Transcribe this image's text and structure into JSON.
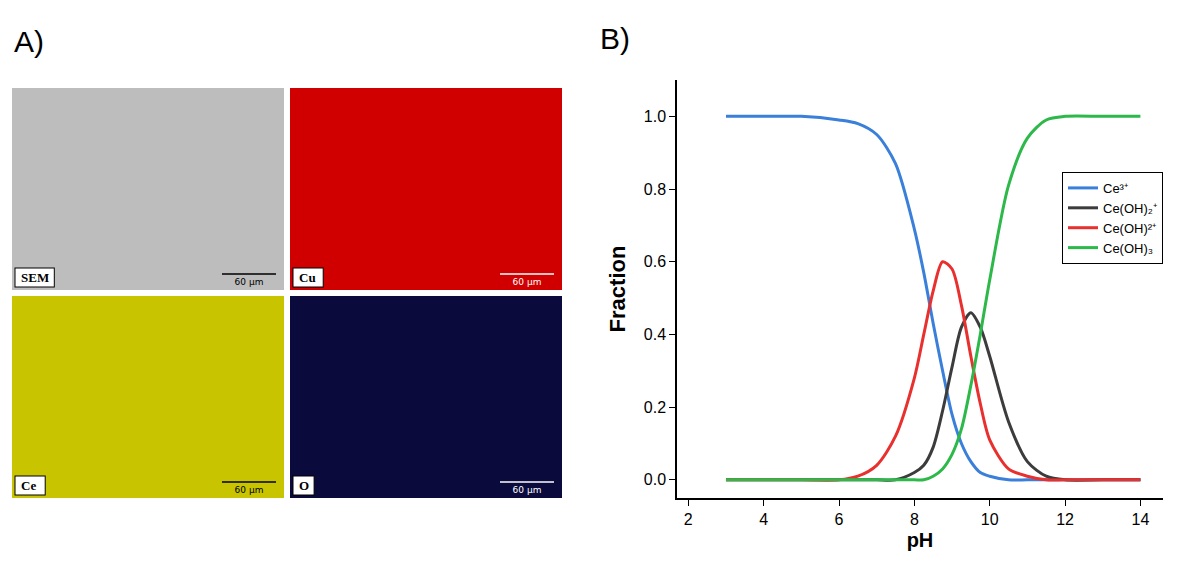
{
  "panel_a": {
    "panel_label": "A)",
    "maps": [
      {
        "label": "SEM",
        "color": "#bdbdbd",
        "scale_bar": "60 µm"
      },
      {
        "label": "Cu",
        "color": "#d00000",
        "scale_bar": "60 µm"
      },
      {
        "label": "Ce",
        "color": "#c9c400",
        "scale_bar": "60 µm"
      },
      {
        "label": "O",
        "color": "#0a0a3c",
        "scale_bar": "60 µm"
      }
    ]
  },
  "chart_data": {
    "type": "line",
    "panel_label": "B)",
    "x_label": "pH",
    "y_label": "Fraction",
    "x": [
      3,
      4,
      5,
      6,
      6.5,
      7,
      7.5,
      8,
      8.25,
      8.5,
      8.75,
      9,
      9.25,
      9.5,
      9.75,
      10,
      10.5,
      11,
      11.5,
      12,
      13,
      14
    ],
    "series": [
      {
        "name": "Ce³⁺",
        "color": "#3a7fd9",
        "values": [
          1,
          1,
          1,
          0.99,
          0.98,
          0.95,
          0.87,
          0.69,
          0.57,
          0.43,
          0.3,
          0.18,
          0.1,
          0.05,
          0.02,
          0.01,
          0,
          0,
          0,
          0,
          0,
          0
        ]
      },
      {
        "name": "Ce(OH)₂⁺",
        "color": "#3c3c3c",
        "values": [
          0,
          0,
          0,
          0,
          0,
          0,
          0,
          0.02,
          0.04,
          0.09,
          0.19,
          0.31,
          0.42,
          0.46,
          0.42,
          0.34,
          0.16,
          0.05,
          0.01,
          0,
          0,
          0
        ]
      },
      {
        "name": "Ce(OH)²⁺",
        "color": "#e8302e",
        "values": [
          0,
          0,
          0,
          0,
          0.01,
          0.04,
          0.12,
          0.28,
          0.4,
          0.52,
          0.6,
          0.58,
          0.48,
          0.34,
          0.21,
          0.11,
          0.03,
          0.01,
          0,
          0,
          0,
          0
        ]
      },
      {
        "name": "Ce(OH)₃",
        "color": "#2db84a",
        "values": [
          0,
          0,
          0,
          0,
          0,
          0,
          0,
          0,
          0,
          0.01,
          0.03,
          0.07,
          0.14,
          0.26,
          0.4,
          0.55,
          0.81,
          0.94,
          0.99,
          1.0,
          1.0,
          1.0
        ]
      }
    ],
    "xlim": [
      1.7,
      14.6
    ],
    "xticks": [
      2,
      4,
      6,
      8,
      10,
      12,
      14
    ],
    "ylim": [
      -0.05,
      1.1
    ],
    "yticks": [
      {
        "value": 0,
        "label": "0.0"
      },
      0.2,
      0.4,
      0.6,
      0.8,
      {
        "value": 1,
        "label": "1.0"
      }
    ],
    "grid": false,
    "legend": "right"
  }
}
